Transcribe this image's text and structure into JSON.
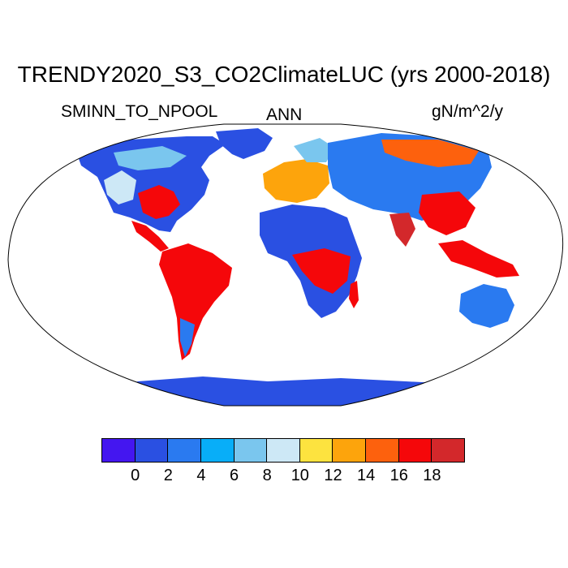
{
  "title": "TRENDY2020_S3_CO2ClimateLUC (yrs 2000-2018)",
  "variable": "SMINN_TO_NPOOL",
  "season": "ANN",
  "units": "gN/m^2/y",
  "map": {
    "projection": "Robinson",
    "ocean_color": "#ffffff",
    "outline_color": "#000000"
  },
  "colorbar": {
    "colors": [
      "#4416f0",
      "#2a50e2",
      "#2a7af0",
      "#08aef8",
      "#7ac6ee",
      "#cde8f6",
      "#fde33f",
      "#fda40c",
      "#fd610d",
      "#f5070a",
      "#d3282b"
    ],
    "tick_labels": [
      "0",
      "2",
      "4",
      "6",
      "8",
      "10",
      "12",
      "14",
      "16",
      "18"
    ]
  }
}
